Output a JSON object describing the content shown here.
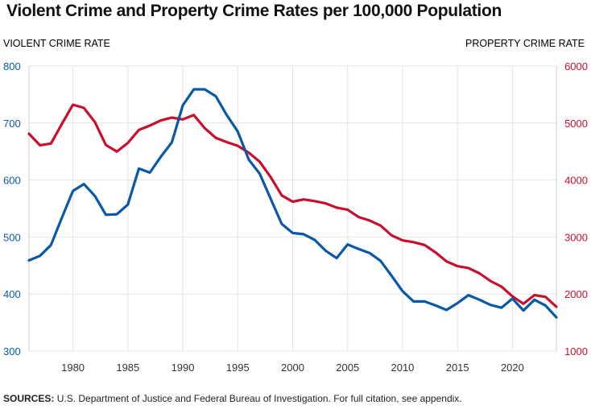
{
  "colors": {
    "violent": "#0a58a8",
    "property": "#c8102e",
    "grid": "#e4e4e4",
    "axis_text": "#333333"
  },
  "footer": {
    "label": "SOURCES:",
    "text": "U.S. Department of Justice and Federal Bureau of Investigation. For full citation, see appendix."
  },
  "chart_data": {
    "type": "line",
    "title": "Violent Crime and Property Crime Rates per 100,000 Population",
    "xlabel": "",
    "xlim": [
      1976,
      2024
    ],
    "x_ticks": [
      1980,
      1985,
      1990,
      1995,
      2000,
      2005,
      2010,
      2015,
      2020
    ],
    "grid": true,
    "legend": "none",
    "axes": {
      "left": {
        "label": "VIOLENT CRIME RATE",
        "ylim": [
          300,
          800
        ],
        "ticks": [
          300,
          400,
          500,
          600,
          700,
          800
        ]
      },
      "right": {
        "label": "PROPERTY CRIME RATE",
        "ylim": [
          1000,
          6000
        ],
        "ticks": [
          1000,
          2000,
          3000,
          4000,
          5000,
          6000
        ]
      }
    },
    "x": [
      1976,
      1977,
      1978,
      1979,
      1980,
      1981,
      1982,
      1983,
      1984,
      1985,
      1986,
      1987,
      1988,
      1989,
      1990,
      1991,
      1992,
      1993,
      1994,
      1995,
      1996,
      1997,
      1998,
      1999,
      2000,
      2001,
      2002,
      2003,
      2004,
      2005,
      2006,
      2007,
      2008,
      2009,
      2010,
      2011,
      2012,
      2013,
      2014,
      2015,
      2016,
      2017,
      2018,
      2019,
      2020,
      2021,
      2022,
      2023,
      2024
    ],
    "series": [
      {
        "key": "violent",
        "axis": "left",
        "values": [
          459,
          467,
          486,
          534,
          581,
          593,
          572,
          539,
          540,
          557,
          620,
          613,
          641,
          666,
          731,
          759,
          759,
          747,
          714,
          685,
          636,
          611,
          567,
          523,
          507,
          505,
          495,
          476,
          463,
          487,
          479,
          472,
          458,
          432,
          405,
          387,
          387,
          380,
          372,
          384,
          398,
          390,
          381,
          376,
          392,
          371,
          390,
          380,
          359
        ]
      },
      {
        "key": "property",
        "axis": "right",
        "values": [
          4812,
          4610,
          4640,
          4986,
          5320,
          5265,
          5015,
          4615,
          4498,
          4651,
          4879,
          4955,
          5045,
          5095,
          5063,
          5140,
          4910,
          4740,
          4665,
          4600,
          4480,
          4320,
          4050,
          3730,
          3620,
          3660,
          3630,
          3590,
          3515,
          3480,
          3350,
          3290,
          3200,
          3030,
          2940,
          2910,
          2860,
          2730,
          2574,
          2488,
          2456,
          2363,
          2229,
          2130,
          1959,
          1829,
          1980,
          1950,
          1777
        ]
      }
    ]
  }
}
